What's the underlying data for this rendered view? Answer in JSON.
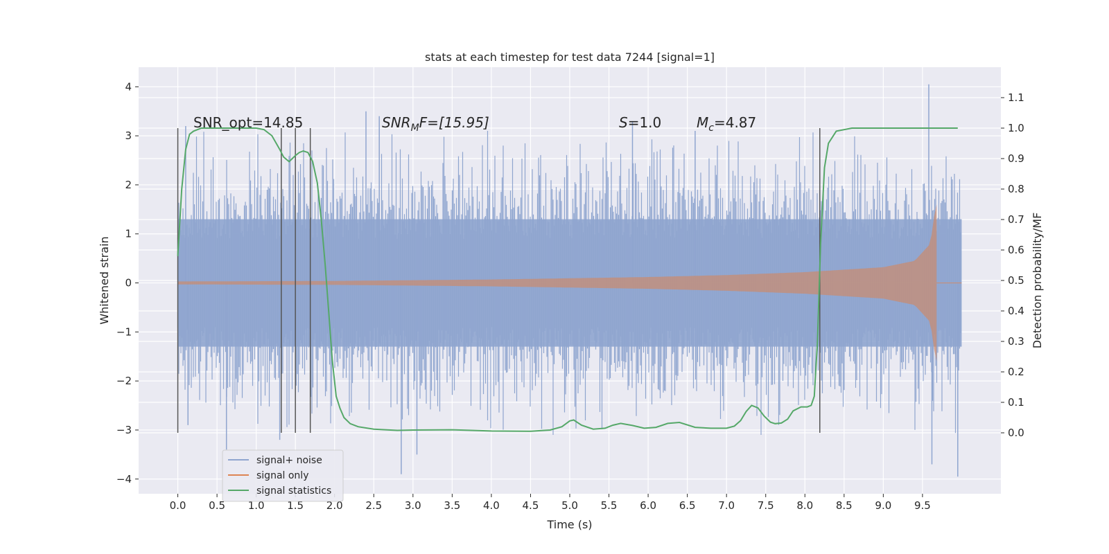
{
  "chart_data": {
    "type": "line",
    "title": "stats at each timestep for test data 7244 [signal=1]",
    "xlabel": "Time (s)",
    "ylabel": "Whitened strain",
    "ylabel_right": "Detection probability/MF",
    "xlim": [
      -0.5,
      10.5
    ],
    "ylim": [
      -4.3,
      4.4
    ],
    "ylim_right": [
      -0.2,
      1.2
    ],
    "x_ticks": [
      0.0,
      0.5,
      1.0,
      1.5,
      2.0,
      2.5,
      3.0,
      3.5,
      4.0,
      4.5,
      5.0,
      5.5,
      6.0,
      6.5,
      7.0,
      7.5,
      8.0,
      8.5,
      9.0,
      9.5
    ],
    "x_tick_labels": [
      "0.0",
      "0.5",
      "1.0",
      "1.5",
      "2.0",
      "2.5",
      "3.0",
      "3.5",
      "4.0",
      "4.5",
      "5.0",
      "5.5",
      "6.0",
      "6.5",
      "7.0",
      "7.5",
      "8.0",
      "8.5",
      "9.0",
      "9.5"
    ],
    "y_ticks": [
      4,
      3,
      2,
      1,
      0,
      -1,
      -2,
      -3,
      -4
    ],
    "y_tick_labels": [
      "4",
      "3",
      "2",
      "1",
      "0",
      "−1",
      "−2",
      "−3",
      "−4"
    ],
    "y_right_ticks": [
      1.1,
      1.0,
      0.9,
      0.8,
      0.7,
      0.6,
      0.5,
      0.4,
      0.3,
      0.2,
      0.1,
      0.0
    ],
    "y_right_tick_labels": [
      "1.1",
      "1.0",
      "0.9",
      "0.8",
      "0.7",
      "0.6",
      "0.5",
      "0.4",
      "0.3",
      "0.2",
      "0.1",
      "0.0"
    ],
    "grid": true,
    "legend_position": "lower-left",
    "annotations": {
      "snr_opt": "SNR_opt=14.85",
      "snr_mf_base": "SNR",
      "snr_mf_sub": "M",
      "snr_mf_rest": "F=[15.95]",
      "s_base": "S",
      "s_rest": "=1.0",
      "mc_base": "M",
      "mc_sub": "c",
      "mc_rest": "=4.87"
    },
    "vertical_markers": [
      0.0,
      1.32,
      1.5,
      1.69,
      8.19
    ],
    "series": [
      {
        "name": "signal+ noise",
        "color": "#8fa5cf",
        "axis": "left",
        "kind": "noise",
        "t_start": 0.0,
        "t_end": 10.0,
        "typical_range": [
          -1.3,
          1.3
        ],
        "peak_samples": [
          [
            0.1,
            3.2
          ],
          [
            0.13,
            -2.9
          ],
          [
            0.62,
            -3.4
          ],
          [
            1.3,
            -3.2
          ],
          [
            2.4,
            3.5
          ],
          [
            2.57,
            3.4
          ],
          [
            2.85,
            -3.9
          ],
          [
            3.05,
            -3.5
          ],
          [
            5.8,
            3.3
          ],
          [
            6.6,
            3.1
          ],
          [
            9.58,
            4.05
          ],
          [
            9.62,
            -3.7
          ],
          [
            9.95,
            -3.95
          ]
        ]
      },
      {
        "name": "signal only",
        "color": "#dd8452",
        "axis": "left",
        "kind": "chirp",
        "t_start": 0.0,
        "t_merger": 9.68,
        "t_end": 10.0,
        "envelope": [
          [
            0.0,
            0.03
          ],
          [
            2.0,
            0.04
          ],
          [
            4.0,
            0.07
          ],
          [
            6.0,
            0.12
          ],
          [
            7.0,
            0.16
          ],
          [
            8.0,
            0.22
          ],
          [
            9.0,
            0.32
          ],
          [
            9.4,
            0.45
          ],
          [
            9.6,
            0.8
          ],
          [
            9.67,
            1.6
          ]
        ]
      },
      {
        "name": "signal statistics",
        "color": "#55a868",
        "axis": "right",
        "x": [
          0.0,
          0.05,
          0.1,
          0.15,
          0.2,
          0.3,
          0.5,
          0.8,
          1.0,
          1.1,
          1.2,
          1.3,
          1.35,
          1.42,
          1.5,
          1.55,
          1.6,
          1.66,
          1.72,
          1.78,
          1.83,
          1.88,
          1.93,
          1.97,
          2.02,
          2.07,
          2.12,
          2.2,
          2.3,
          2.5,
          2.8,
          3.0,
          3.5,
          4.0,
          4.5,
          4.75,
          4.9,
          5.0,
          5.05,
          5.15,
          5.3,
          5.45,
          5.55,
          5.65,
          5.8,
          5.95,
          6.1,
          6.25,
          6.4,
          6.6,
          6.8,
          7.0,
          7.1,
          7.18,
          7.25,
          7.32,
          7.4,
          7.48,
          7.56,
          7.62,
          7.7,
          7.78,
          7.85,
          7.95,
          8.03,
          8.08,
          8.12,
          8.16,
          8.2,
          8.25,
          8.3,
          8.4,
          8.6,
          9.0,
          9.5,
          9.95
        ],
        "y": [
          0.58,
          0.8,
          0.93,
          0.98,
          0.99,
          1.0,
          1.0,
          1.0,
          1.0,
          0.995,
          0.975,
          0.93,
          0.905,
          0.89,
          0.91,
          0.92,
          0.925,
          0.92,
          0.89,
          0.82,
          0.7,
          0.55,
          0.38,
          0.24,
          0.12,
          0.08,
          0.05,
          0.03,
          0.02,
          0.012,
          0.008,
          0.009,
          0.01,
          0.006,
          0.005,
          0.009,
          0.02,
          0.039,
          0.042,
          0.025,
          0.012,
          0.015,
          0.025,
          0.031,
          0.024,
          0.015,
          0.018,
          0.031,
          0.034,
          0.018,
          0.015,
          0.015,
          0.022,
          0.04,
          0.07,
          0.09,
          0.082,
          0.055,
          0.035,
          0.03,
          0.032,
          0.045,
          0.072,
          0.085,
          0.085,
          0.09,
          0.12,
          0.3,
          0.62,
          0.87,
          0.95,
          0.99,
          1.0,
          1.0,
          1.0,
          1.0
        ]
      }
    ]
  }
}
